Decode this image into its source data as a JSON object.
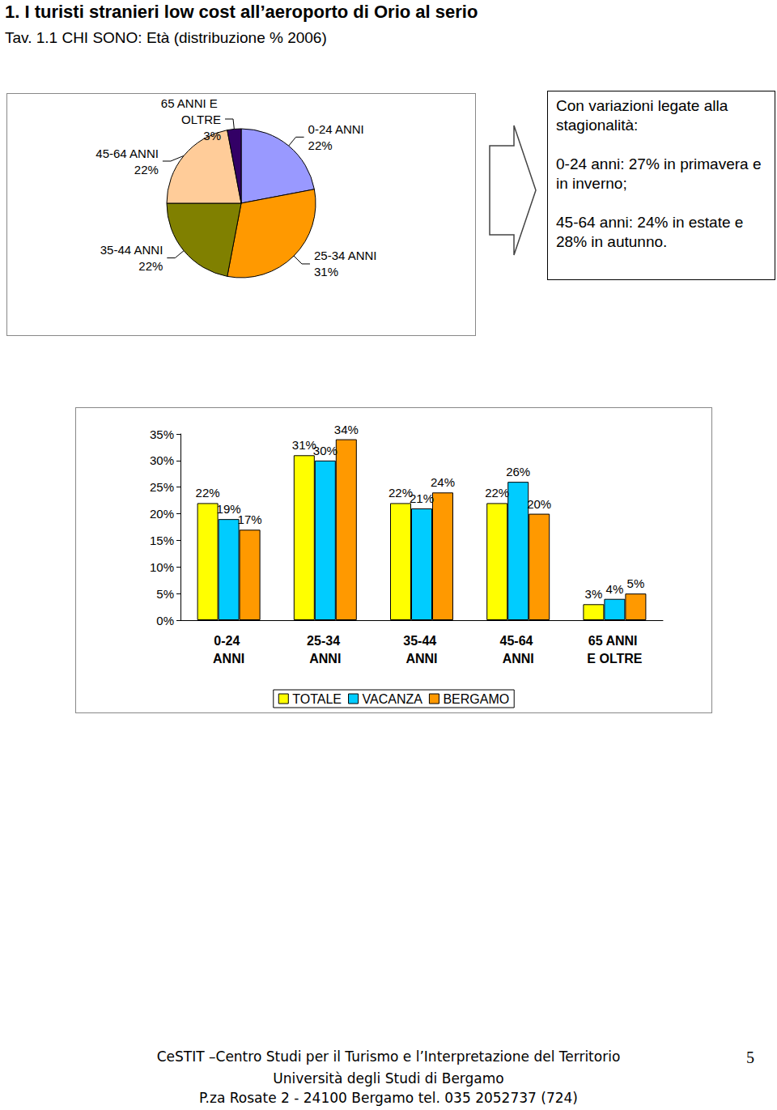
{
  "header": {
    "title": "1. I turisti stranieri low cost all’aeroporto di Orio al serio",
    "subtitle": "Tav. 1.1 CHI SONO: Età (distribuzione % 2006)"
  },
  "chart_data": [
    {
      "type": "pie",
      "categories": [
        "0-24 ANNI",
        "25-34 ANNI",
        "35-44 ANNI",
        "45-64 ANNI",
        "65 ANNI E OLTRE"
      ],
      "values": [
        22,
        31,
        22,
        22,
        3
      ],
      "value_labels": [
        "22%",
        "31%",
        "22%",
        "22%",
        "3%"
      ],
      "colors": [
        "#9999FF",
        "#FF9900",
        "#808000",
        "#FFCC99",
        "#330066"
      ],
      "data_labels": true,
      "legend": false
    },
    {
      "type": "bar",
      "categories": [
        "0-24 ANNI",
        "25-34 ANNI",
        "35-44 ANNI",
        "45-64 ANNI",
        "65 ANNI E OLTRE"
      ],
      "series": [
        {
          "name": "TOTALE",
          "color": "#FFFF00",
          "values": [
            22,
            31,
            22,
            22,
            3
          ],
          "value_labels": [
            "22%",
            "31%",
            "22%",
            "22%",
            "3%"
          ]
        },
        {
          "name": "VACANZA",
          "color": "#00CCFF",
          "values": [
            19,
            30,
            21,
            26,
            4
          ],
          "value_labels": [
            "19%",
            "30%",
            "21%",
            "26%",
            "4%"
          ]
        },
        {
          "name": "BERGAMO",
          "color": "#FF9900",
          "values": [
            17,
            34,
            24,
            20,
            5
          ],
          "value_labels": [
            "17%",
            "34%",
            "24%",
            "20%",
            "5%"
          ]
        }
      ],
      "ylim": [
        0,
        35
      ],
      "yticks": [
        {
          "value": 0,
          "label": "0%"
        },
        {
          "value": 5,
          "label": "5%"
        },
        {
          "value": 10,
          "label": "10%"
        },
        {
          "value": 15,
          "label": "15%"
        },
        {
          "value": 20,
          "label": "20%"
        },
        {
          "value": 25,
          "label": "25%"
        },
        {
          "value": 30,
          "label": "30%"
        },
        {
          "value": 35,
          "label": "35%"
        }
      ],
      "grid": false,
      "data_labels": true,
      "legend": "bottom"
    }
  ],
  "note": {
    "paragraphs": [
      "Con variazioni legate alla stagionalità:",
      "0-24 anni: 27% in primavera e in inverno;",
      "45-64 anni: 24% in estate e 28% in autunno."
    ]
  },
  "footer": {
    "lines": [
      "CeSTIT –Centro Studi per il Turismo e l’Interpretazione del Territorio",
      "Università degli Studi di Bergamo",
      "P.za Rosate 2 - 24100 Bergamo tel. 035 2052737 (724)"
    ],
    "page": 5
  }
}
